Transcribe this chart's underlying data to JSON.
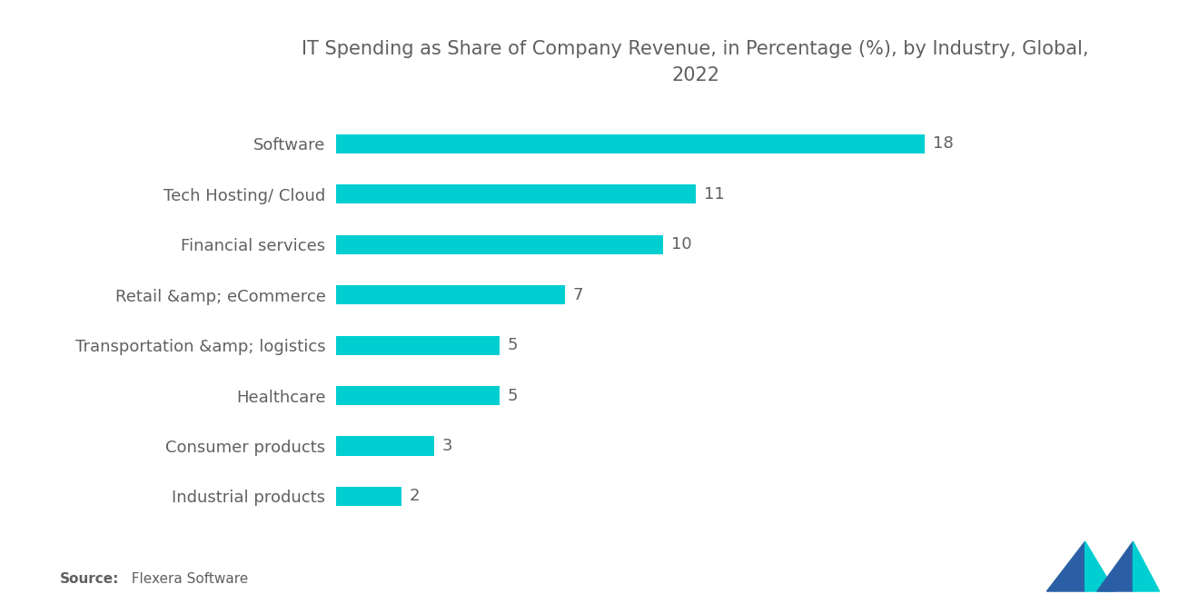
{
  "title": "IT Spending as Share of Company Revenue, in Percentage (%), by Industry, Global,\n2022",
  "categories": [
    "Industrial products",
    "Consumer products",
    "Healthcare",
    "Transportation &amp; logistics",
    "Retail &amp; eCommerce",
    "Financial services",
    "Tech Hosting/ Cloud",
    "Software"
  ],
  "values": [
    2,
    3,
    5,
    5,
    7,
    10,
    11,
    18
  ],
  "bar_color": "#00CED1",
  "background_color": "#ffffff",
  "text_color": "#606060",
  "title_color": "#606060",
  "source_label_bold": "Source:",
  "source_label_rest": "  Flexera Software",
  "xlim": [
    0,
    22
  ],
  "bar_height": 0.38,
  "value_label_fontsize": 13,
  "category_fontsize": 13,
  "title_fontsize": 15,
  "logo_left_color": "#2B5FA5",
  "logo_right_color": "#00CED1"
}
